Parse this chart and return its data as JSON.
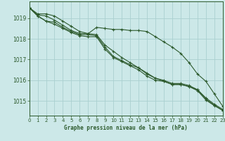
{
  "title": "Graphe pression niveau de la mer (hPa)",
  "bg_color": "#cce8e8",
  "grid_color": "#aad0d0",
  "line_color": "#2d5a2d",
  "marker_color": "#2d5a2d",
  "xlim": [
    0,
    23
  ],
  "ylim": [
    1014.3,
    1019.8
  ],
  "yticks": [
    1015,
    1016,
    1017,
    1018,
    1019
  ],
  "xticks": [
    0,
    1,
    2,
    3,
    4,
    5,
    6,
    7,
    8,
    9,
    10,
    11,
    12,
    13,
    14,
    15,
    16,
    17,
    18,
    19,
    20,
    21,
    22,
    23
  ],
  "series": [
    [
      1019.5,
      1019.2,
      1019.2,
      1019.1,
      1018.85,
      1018.6,
      1018.35,
      1018.25,
      1018.55,
      1018.5,
      1018.45,
      1018.45,
      1018.4,
      1018.4,
      1018.35,
      1018.1,
      1017.85,
      1017.6,
      1017.3,
      1016.85,
      1016.3,
      1015.95,
      1015.35,
      1014.75
    ],
    [
      1019.5,
      1019.15,
      1019.1,
      1018.9,
      1018.65,
      1018.4,
      1018.25,
      1018.25,
      1018.2,
      1017.7,
      1017.4,
      1017.1,
      1016.85,
      1016.6,
      1016.35,
      1016.1,
      1015.95,
      1015.8,
      1015.8,
      1015.7,
      1015.55,
      1015.15,
      1014.85,
      1014.6
    ],
    [
      1019.5,
      1019.1,
      1018.85,
      1018.8,
      1018.55,
      1018.35,
      1018.2,
      1018.2,
      1018.15,
      1017.6,
      1017.15,
      1016.95,
      1016.75,
      1016.6,
      1016.3,
      1016.1,
      1016.0,
      1015.85,
      1015.85,
      1015.75,
      1015.55,
      1015.1,
      1014.8,
      1014.55
    ],
    [
      1019.5,
      1019.1,
      1018.85,
      1018.7,
      1018.5,
      1018.3,
      1018.15,
      1018.1,
      1018.1,
      1017.5,
      1017.1,
      1016.9,
      1016.7,
      1016.5,
      1016.2,
      1016.0,
      1015.95,
      1015.8,
      1015.8,
      1015.7,
      1015.5,
      1015.05,
      1014.78,
      1014.55
    ]
  ]
}
